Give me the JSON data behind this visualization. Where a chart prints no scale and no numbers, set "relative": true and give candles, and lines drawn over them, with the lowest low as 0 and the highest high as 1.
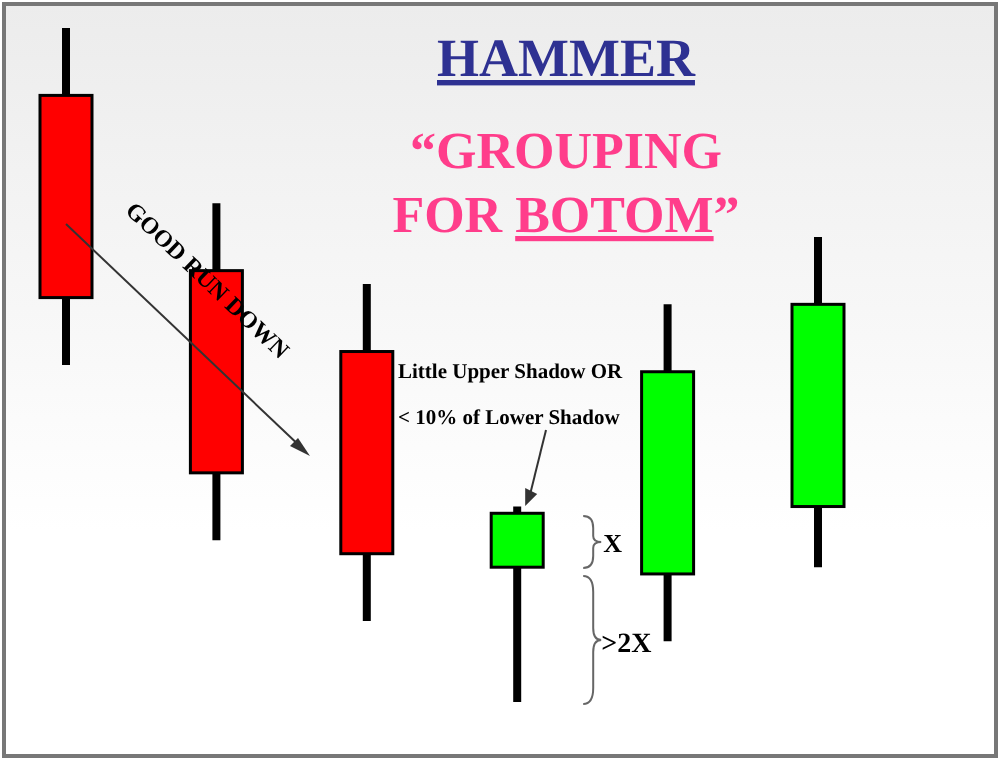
{
  "chart_data": {
    "type": "candlestick",
    "relative": true,
    "title": "HAMMER",
    "subtitle": "“GROUPING FOR BOTOM”",
    "categories": [
      null,
      null,
      null,
      null,
      null,
      null
    ],
    "ohlc": [
      [
        0.9,
        1,
        0.5,
        0.6
      ],
      [
        0.64,
        0.74,
        0.24,
        0.34
      ],
      [
        0.52,
        0.62,
        0.12,
        0.22
      ],
      [
        0.2,
        0.29,
        0,
        0.28
      ],
      [
        0.19,
        0.59,
        0.09,
        0.49
      ],
      [
        0.29,
        0.69,
        0.2,
        0.59
      ]
    ],
    "colors": [
      "#ff0000",
      "#ff0000",
      "#ff0000",
      "#00ff00",
      "#00ff00",
      "#00ff00"
    ],
    "annotations": [
      "GOOD RUN DOWN",
      "Little Upper Shadow OR\n< 10% of Lower Shadow",
      "X",
      ">2X"
    ]
  }
}
